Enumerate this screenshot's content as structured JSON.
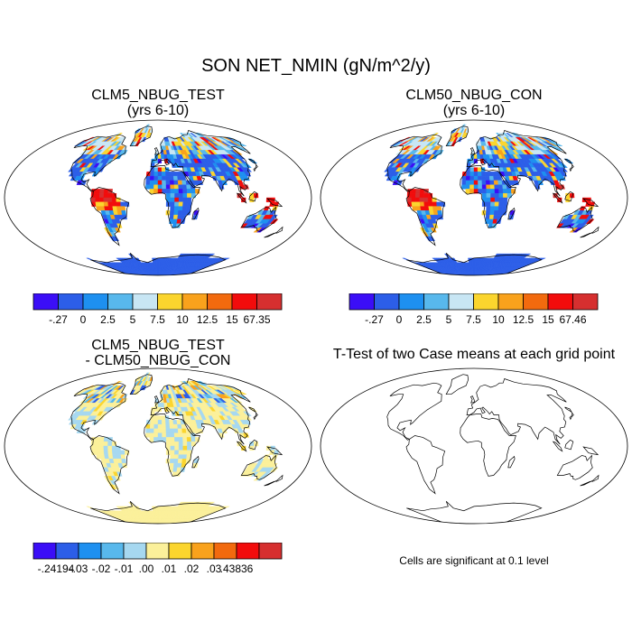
{
  "figure": {
    "title": "SON NET_NMIN (gN/m^2/y)"
  },
  "panels": [
    {
      "id": "test",
      "title_line1": "CLM5_NBUG_TEST",
      "title_line2": "(yrs 6-10)",
      "colorbar": {
        "colors": [
          "#3b0ef7",
          "#2c5ee8",
          "#1e90f0",
          "#58b8ec",
          "#c8e6f4",
          "#fbd52e",
          "#f9a21c",
          "#f26a0e",
          "#f20c0c",
          "#d62f2f"
        ],
        "labels": [
          "-.27",
          "0",
          "2.5",
          "5",
          "7.5",
          "10",
          "12.5",
          "15",
          "67.35"
        ]
      }
    },
    {
      "id": "control",
      "title_line1": "CLM50_NBUG_CON",
      "title_line2": "(yrs 6-10)",
      "colorbar": {
        "colors": [
          "#3b0ef7",
          "#2c5ee8",
          "#1e90f0",
          "#58b8ec",
          "#c8e6f4",
          "#fbd52e",
          "#f9a21c",
          "#f26a0e",
          "#f20c0c",
          "#d62f2f"
        ],
        "labels": [
          "-.27",
          "0",
          "2.5",
          "5",
          "7.5",
          "10",
          "12.5",
          "15",
          "67.46"
        ]
      }
    },
    {
      "id": "difference",
      "title_line1": "CLM5_NBUG_TEST",
      "title_line2": "- CLM50_NBUG_CON",
      "colorbar": {
        "colors": [
          "#3b0ef7",
          "#2c5ee8",
          "#1e90f0",
          "#58b8ec",
          "#a6d8f0",
          "#fbf09a",
          "#fbd52e",
          "#f9a21c",
          "#f26a0e",
          "#f20c0c",
          "#d62f2f"
        ],
        "labels": [
          "-.24194",
          "-.03",
          "-.02",
          "-.01",
          ".00",
          ".01",
          ".02",
          ".03",
          ".43836"
        ]
      }
    },
    {
      "id": "ttest",
      "title_line1": "T-Test of two Case means at each grid point",
      "note": "Cells are significant at 0.1 level"
    }
  ],
  "map_palettes": {
    "abs": [
      "#2c5ee8",
      "#2c5ee8",
      "#1e90f0",
      "#58b8ec",
      "#c8e6f4",
      "#fbd52e",
      "#f9a21c",
      "#f20c0c",
      "#d62f2f",
      "#3b0ef7"
    ],
    "diff": [
      "#fbf09a",
      "#fbf09a",
      "#fbf09a",
      "#a6d8f0",
      "#a6d8f0",
      "#fbd52e",
      "#58b8ec",
      "#f9a21c",
      "#2c5ee8"
    ]
  }
}
